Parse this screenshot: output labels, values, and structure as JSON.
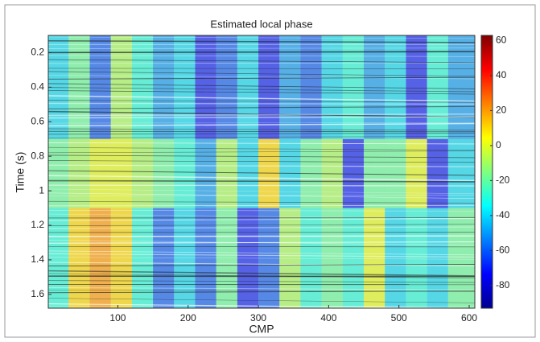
{
  "chart_data": {
    "type": "heatmap",
    "title": "Estimated local phase",
    "xlabel": "CMP",
    "ylabel": "Time (s)",
    "colormap": "jet",
    "x_edges": [
      1,
      30,
      60,
      90,
      120,
      150,
      180,
      210,
      240,
      270,
      300,
      330,
      360,
      390,
      420,
      450,
      480,
      510,
      540,
      570,
      608
    ],
    "y_edges": [
      0.1,
      0.7,
      1.1,
      1.68
    ],
    "values": [
      [
        -40,
        -20,
        -60,
        -10,
        -30,
        -50,
        -40,
        -70,
        -60,
        -40,
        -70,
        -50,
        -60,
        -40,
        -30,
        -50,
        -40,
        -70,
        -30,
        -50
      ],
      [
        -20,
        -10,
        0,
        0,
        -10,
        -20,
        -30,
        -50,
        -10,
        -40,
        10,
        -40,
        -20,
        -10,
        -70,
        -20,
        -20,
        0,
        -70,
        -40
      ],
      [
        -30,
        10,
        20,
        10,
        -30,
        -60,
        -40,
        -60,
        -20,
        -70,
        -60,
        -10,
        -30,
        -20,
        -30,
        0,
        -40,
        -30,
        -40,
        -20
      ]
    ],
    "xlim": [
      1,
      608
    ],
    "xticks": [
      100,
      200,
      300,
      400,
      500,
      600
    ],
    "ylim": [
      0.1,
      1.68
    ],
    "yticks": [
      0.2,
      0.4,
      0.6,
      0.8,
      1,
      1.2,
      1.4,
      1.6
    ],
    "clim": [
      -93,
      63
    ],
    "cticks": [
      60,
      40,
      20,
      0,
      -20,
      -40,
      -60,
      -80
    ]
  }
}
